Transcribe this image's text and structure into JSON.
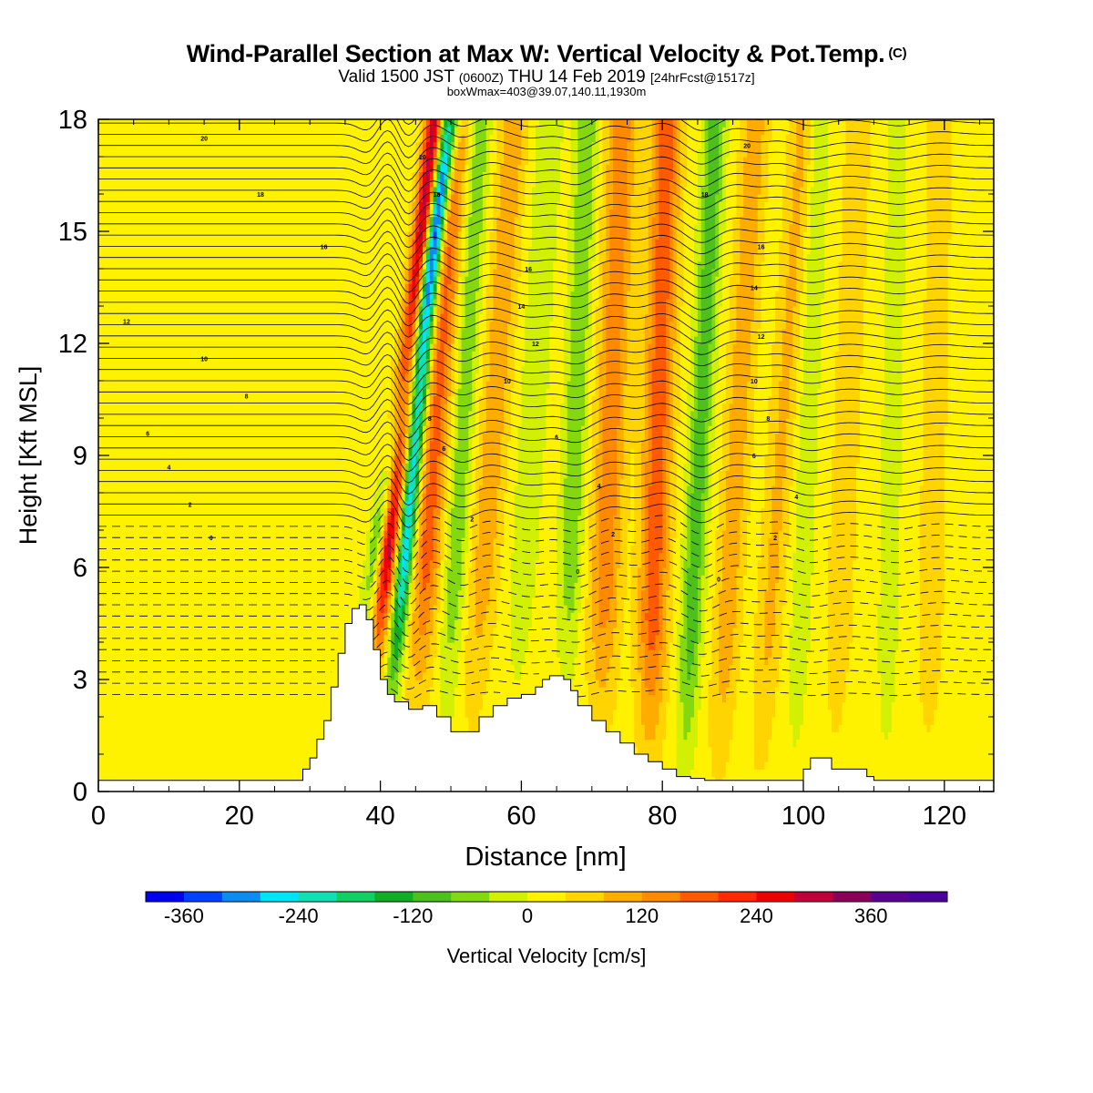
{
  "header": {
    "title": "Wind-Parallel Section at Max W: Vertical Velocity & Pot.Temp.",
    "title_mark": "(C)",
    "valid_main": "Valid 1500 JST",
    "valid_z": "(0600Z)",
    "valid_date": "THU 14 Feb 2019",
    "fcst": "[24hrFcst@1517z]",
    "box_info": "boxWmax=403@39.07,140.11,1930m"
  },
  "chart_data": {
    "type": "heatmap",
    "xlabel": "Distance [nm]",
    "ylabel": "Height [Kft MSL]",
    "xlim": [
      0,
      127
    ],
    "ylim": [
      0,
      18
    ],
    "x_ticks": [
      0,
      20,
      40,
      60,
      80,
      100,
      120
    ],
    "x_tick_labels": [
      "0",
      "20",
      "40",
      "60",
      "80",
      "100",
      "120"
    ],
    "y_ticks": [
      0,
      3,
      6,
      9,
      12,
      15,
      18
    ],
    "y_tick_labels": [
      "0",
      "3",
      "6",
      "9",
      "12",
      "15",
      "18"
    ],
    "colorbar": {
      "label": "Vertical Velocity [cm/s]",
      "min": -400,
      "max": 440,
      "step": 40,
      "tick_values": [
        -360,
        -240,
        -120,
        0,
        120,
        240,
        360
      ],
      "tick_labels": [
        "-360",
        "-240",
        "-120",
        "0",
        "120",
        "240",
        "360"
      ],
      "colors": [
        "#0000f0",
        "#0040ff",
        "#0a8cf0",
        "#00e4f4",
        "#10e0b4",
        "#10d064",
        "#10ae26",
        "#4ec01c",
        "#84d810",
        "#d2f004",
        "#fff200",
        "#ffd400",
        "#ffac00",
        "#ff8a00",
        "#ff5a00",
        "#ff2a00",
        "#ee0000",
        "#c0003a",
        "#8a0058",
        "#5a0090",
        "#4a0098"
      ]
    },
    "background_w": 20,
    "bands": [
      {
        "x": 37.2,
        "w": -180,
        "width": 1.3,
        "slope": 0.95,
        "top": 18
      },
      {
        "x": 39.5,
        "w": 320,
        "width": 1.4,
        "slope": 0.6,
        "top": 18
      },
      {
        "x": 42.3,
        "w": -300,
        "width": 1.2,
        "slope": 0.5,
        "top": 18
      },
      {
        "x": 45.8,
        "w": 160,
        "width": 1.9,
        "slope": 0.35,
        "top": 18
      },
      {
        "x": 50.0,
        "w": -90,
        "width": 1.6,
        "slope": 0.3,
        "top": 18
      },
      {
        "x": 54.0,
        "w": 90,
        "width": 2.0,
        "slope": 0.35,
        "top": 18
      },
      {
        "x": 59.8,
        "w": -60,
        "width": 1.8,
        "slope": 0.3,
        "top": 18
      },
      {
        "x": 66.5,
        "w": -100,
        "width": 1.6,
        "slope": 0.2,
        "top": 18
      },
      {
        "x": 71.5,
        "w": 130,
        "width": 2.1,
        "slope": 0.2,
        "top": 18
      },
      {
        "x": 78.5,
        "w": 170,
        "width": 2.0,
        "slope": 0.15,
        "top": 18
      },
      {
        "x": 84.0,
        "w": -130,
        "width": 1.5,
        "slope": 0.25,
        "top": 18
      },
      {
        "x": 89.0,
        "w": 90,
        "width": 1.8,
        "slope": 0.3,
        "top": 18
      },
      {
        "x": 95.0,
        "w": 70,
        "width": 1.8,
        "slope": 0.35,
        "top": 18
      },
      {
        "x": 99.5,
        "w": -50,
        "width": 1.5,
        "slope": 0.2,
        "top": 18
      },
      {
        "x": 105.0,
        "w": 45,
        "width": 2.0,
        "slope": 0.2,
        "top": 18
      },
      {
        "x": 112.0,
        "w": -45,
        "width": 1.5,
        "slope": 0.1,
        "top": 18
      },
      {
        "x": 118.0,
        "w": 40,
        "width": 2.0,
        "slope": 0.1,
        "top": 18
      }
    ],
    "terrain": {
      "x": [
        0,
        28,
        29,
        30,
        31,
        32,
        33,
        34,
        35,
        36,
        37,
        38,
        39,
        40,
        41,
        42,
        44,
        46,
        48,
        50,
        52,
        54,
        56,
        58,
        60,
        62,
        63,
        64,
        65,
        66,
        67,
        68,
        70,
        72,
        74,
        76,
        78,
        80,
        82,
        84,
        86,
        88,
        90,
        92,
        94,
        96,
        98,
        100,
        101,
        102,
        103,
        104,
        106,
        108,
        109,
        110,
        112,
        127
      ],
      "y": [
        0.3,
        0.3,
        0.6,
        0.9,
        1.4,
        1.9,
        2.8,
        3.7,
        4.5,
        4.9,
        5.0,
        4.6,
        3.8,
        3.0,
        2.6,
        2.4,
        2.2,
        2.3,
        2.0,
        1.6,
        1.6,
        2.0,
        2.3,
        2.5,
        2.6,
        2.8,
        3.0,
        3.1,
        3.1,
        3.0,
        2.7,
        2.3,
        1.9,
        1.6,
        1.3,
        1.0,
        0.8,
        0.6,
        0.4,
        0.35,
        0.3,
        0.3,
        0.3,
        0.3,
        0.3,
        0.3,
        0.3,
        0.6,
        0.9,
        0.9,
        0.9,
        0.6,
        0.6,
        0.6,
        0.4,
        0.3,
        0.3,
        0.3
      ]
    },
    "theta_labels": [
      {
        "x": 15,
        "y": 17.5,
        "v": "20"
      },
      {
        "x": 23,
        "y": 16.0,
        "v": "18"
      },
      {
        "x": 32,
        "y": 14.6,
        "v": "16"
      },
      {
        "x": 4,
        "y": 12.6,
        "v": "12"
      },
      {
        "x": 15,
        "y": 11.6,
        "v": "10"
      },
      {
        "x": 21,
        "y": 10.6,
        "v": "8"
      },
      {
        "x": 7,
        "y": 9.6,
        "v": "6"
      },
      {
        "x": 10,
        "y": 8.7,
        "v": "4"
      },
      {
        "x": 13,
        "y": 7.7,
        "v": "2"
      },
      {
        "x": 16,
        "y": 6.8,
        "v": "0"
      },
      {
        "x": 46,
        "y": 17.0,
        "v": "20"
      },
      {
        "x": 48,
        "y": 16.0,
        "v": "18"
      },
      {
        "x": 61,
        "y": 14.0,
        "v": "16"
      },
      {
        "x": 60,
        "y": 13.0,
        "v": "14"
      },
      {
        "x": 62,
        "y": 12.0,
        "v": "12"
      },
      {
        "x": 58,
        "y": 11.0,
        "v": "10"
      },
      {
        "x": 47,
        "y": 10.0,
        "v": "8"
      },
      {
        "x": 49,
        "y": 9.2,
        "v": "6"
      },
      {
        "x": 65,
        "y": 9.5,
        "v": "6"
      },
      {
        "x": 71,
        "y": 8.2,
        "v": "4"
      },
      {
        "x": 53,
        "y": 7.3,
        "v": "2"
      },
      {
        "x": 73,
        "y": 6.9,
        "v": "2"
      },
      {
        "x": 68,
        "y": 5.9,
        "v": "0"
      },
      {
        "x": 92,
        "y": 17.3,
        "v": "20"
      },
      {
        "x": 86,
        "y": 16.0,
        "v": "18"
      },
      {
        "x": 94,
        "y": 14.6,
        "v": "16"
      },
      {
        "x": 93,
        "y": 13.5,
        "v": "14"
      },
      {
        "x": 94,
        "y": 12.2,
        "v": "12"
      },
      {
        "x": 93,
        "y": 11.0,
        "v": "10"
      },
      {
        "x": 95,
        "y": 10.0,
        "v": "8"
      },
      {
        "x": 93,
        "y": 9.0,
        "v": "6"
      },
      {
        "x": 99,
        "y": 7.9,
        "v": "4"
      },
      {
        "x": 96,
        "y": 6.8,
        "v": "2"
      },
      {
        "x": 88,
        "y": 5.7,
        "v": "0"
      }
    ]
  }
}
